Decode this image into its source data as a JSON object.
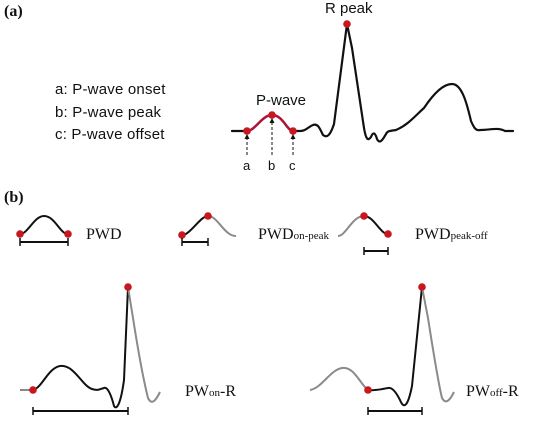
{
  "panel_a": {
    "label": "(a)",
    "r_peak_label": "R peak",
    "p_wave_label": "P-wave",
    "legend": [
      "a: P-wave onset",
      "b: P-wave peak",
      "c: P-wave offset"
    ],
    "point_letters": [
      "a",
      "b",
      "c"
    ]
  },
  "panel_b": {
    "label": "(b)",
    "measures": [
      {
        "main": "PWD",
        "sub": ""
      },
      {
        "main": "PWD",
        "sub": "on-peak"
      },
      {
        "main": "PWD",
        "sub": "peak-off"
      },
      {
        "main": "PW",
        "sub": "on",
        "suffix": "-R"
      },
      {
        "main": "PW",
        "sub": "off",
        "suffix": "-R"
      }
    ]
  },
  "colors": {
    "line": "#111111",
    "p_wave_highlight": "#b1123a",
    "grey_trace": "#8a8a8a",
    "marker": "#c8171d"
  }
}
